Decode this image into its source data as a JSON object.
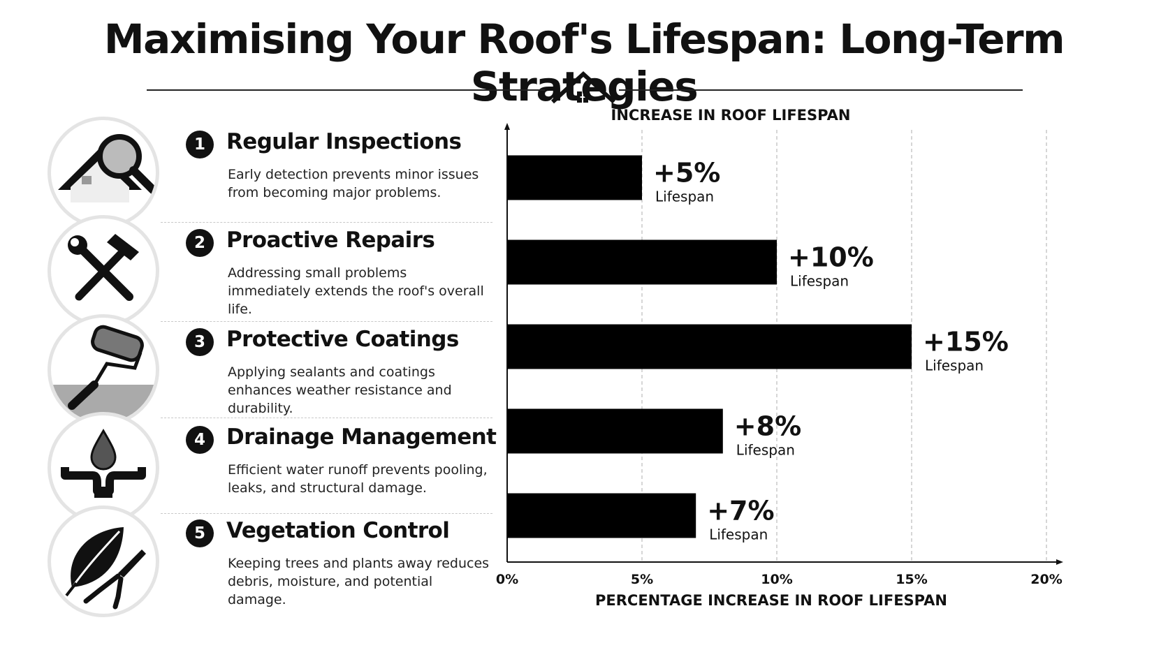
{
  "title": "Maximising Your Roof's Lifespan: Long-Term Strategies",
  "strategies": [
    {
      "number": "1",
      "title": "Regular Inspections",
      "description": "Early detection prevents minor issues from becoming major problems.",
      "icon": "house-magnifier-icon"
    },
    {
      "number": "2",
      "title": "Proactive Repairs",
      "description": "Addressing small problems immediately extends the roof's overall life.",
      "icon": "wrench-hammer-icon"
    },
    {
      "number": "3",
      "title": "Protective Coatings",
      "description": "Applying sealants and coatings enhances weather resistance and durability.",
      "icon": "paint-roller-icon"
    },
    {
      "number": "4",
      "title": "Drainage Management",
      "description": "Efficient water runoff prevents pooling, leaks, and structural damage.",
      "icon": "water-drop-gutter-icon"
    },
    {
      "number": "5",
      "title": "Vegetation Control",
      "description": "Keeping trees and plants away reduces debris, moisture, and potential damage.",
      "icon": "leaf-pruners-icon"
    }
  ],
  "chart_data": {
    "type": "bar",
    "orientation": "horizontal",
    "title": "INCREASE IN ROOF LIFESPAN",
    "xlabel": "PERCENTAGE INCREASE IN ROOF LIFESPAN",
    "ylabel": "",
    "categories": [
      "Regular Inspections",
      "Proactive Repairs",
      "Protective Coatings",
      "Drainage Management",
      "Vegetation Control"
    ],
    "values": [
      5,
      10,
      15,
      8,
      7
    ],
    "value_labels": [
      "+5%",
      "+10%",
      "+15%",
      "+8%",
      "+7%"
    ],
    "value_sublabel": "Lifespan",
    "xlim": [
      0,
      20
    ],
    "xticks": [
      0,
      5,
      10,
      15,
      20
    ],
    "xtick_labels": [
      "0%",
      "5%",
      "10%",
      "15%",
      "20%"
    ],
    "grid": "vertical-dashed",
    "bar_color": "#000000"
  }
}
